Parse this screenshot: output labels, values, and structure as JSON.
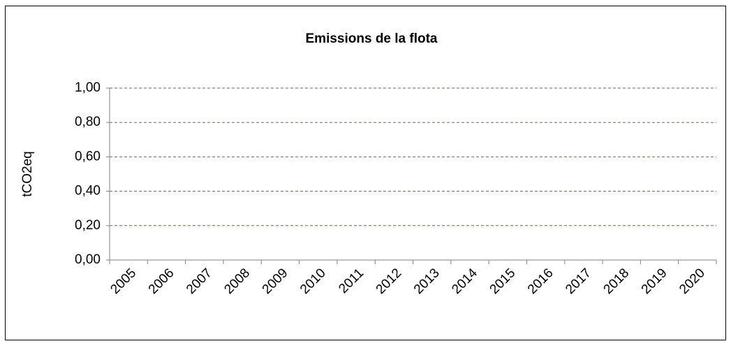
{
  "chart_data": {
    "type": "line",
    "title": "Emissions de la flota",
    "y_label": "tCO2eq",
    "categories": [
      "2005",
      "2006",
      "2007",
      "2008",
      "2009",
      "2010",
      "2011",
      "2012",
      "2013",
      "2014",
      "2015",
      "2016",
      "2017",
      "2018",
      "2019",
      "2020"
    ],
    "ylim": [
      0,
      1
    ],
    "yticks": [
      {
        "value": 0,
        "label": "0,00"
      },
      {
        "value": 0.2,
        "label": "0,20"
      },
      {
        "value": 0.4,
        "label": "0,40"
      },
      {
        "value": 0.6,
        "label": "0,60"
      },
      {
        "value": 0.8,
        "label": "0,80"
      },
      {
        "value": 1,
        "label": "1,00"
      }
    ],
    "grid": true,
    "grid_color": "#6b6b47"
  }
}
